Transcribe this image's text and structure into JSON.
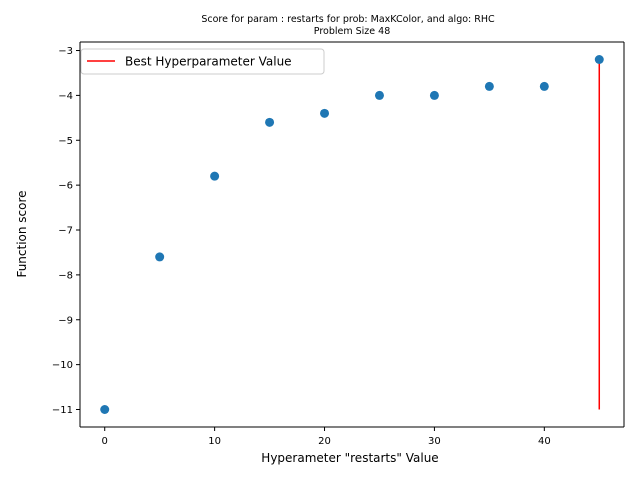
{
  "chart_data": {
    "type": "scatter",
    "title_line1": "Score for param : restarts for prob: MaxKColor, and algo: RHC",
    "title_line2": "Problem Size 48",
    "xlabel": "Hyperameter \"restarts\" Value",
    "ylabel": "Function score",
    "xlim": [
      -2.25,
      47.25
    ],
    "ylim": [
      -11.39,
      -2.81
    ],
    "x_ticks": [
      0,
      10,
      20,
      30,
      40
    ],
    "y_ticks": [
      -11,
      -10,
      -9,
      -8,
      -7,
      -6,
      -5,
      -4,
      -3
    ],
    "x_tick_labels": [
      "0",
      "10",
      "20",
      "30",
      "40"
    ],
    "y_tick_labels": [
      "−11",
      "−10",
      "−9",
      "−8",
      "−7",
      "−6",
      "−5",
      "−4",
      "−3"
    ],
    "series": [
      {
        "x": [
          0,
          5,
          10,
          15,
          20,
          25,
          30,
          35,
          40,
          45
        ],
        "y": [
          -11.0,
          -7.6,
          -5.8,
          -4.6,
          -4.4,
          -4.0,
          -4.0,
          -3.8,
          -3.8,
          -3.2
        ],
        "color": "#1f77b4"
      }
    ],
    "best_line": {
      "name": "Best Hyperparameter Value",
      "x": 45,
      "y_from": -11.0,
      "y_to": -3.2,
      "color": "#ff0000"
    },
    "grid": false,
    "legend_position": "top-left"
  }
}
